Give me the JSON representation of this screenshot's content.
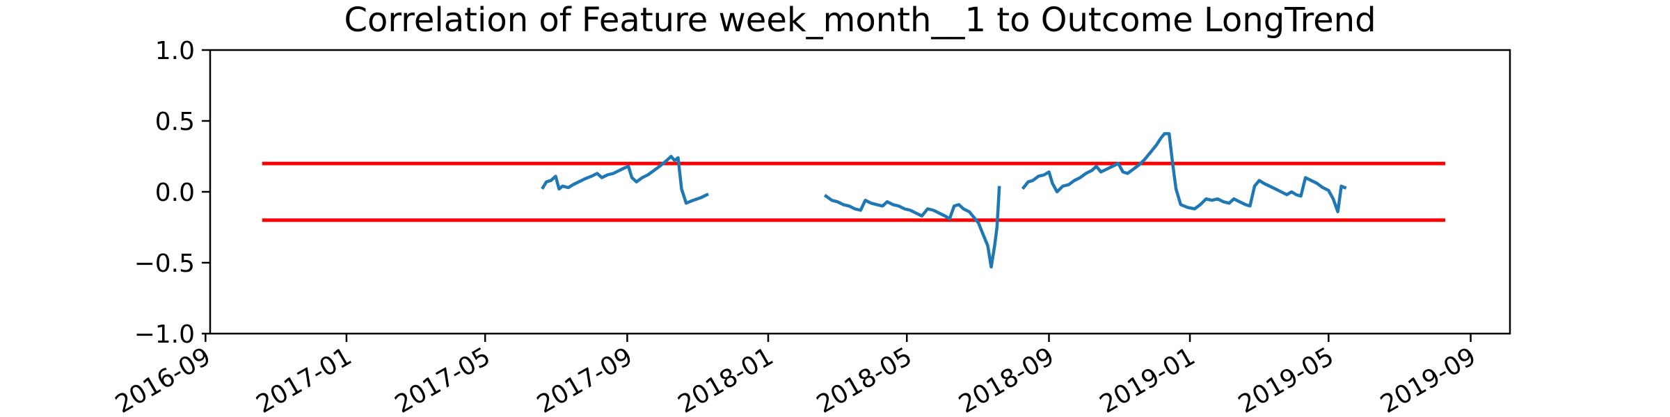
{
  "chart_data": {
    "type": "line",
    "title": "Correlation of Feature week_month__1 to Outcome LongTrend",
    "xlabel": "",
    "ylabel": "",
    "ylim": [
      -1.0,
      1.0
    ],
    "xlim": [
      "2016-09-05",
      "2019-10-05"
    ],
    "grid": false,
    "yticks": [
      {
        "v": 1.0,
        "label": "1.0"
      },
      {
        "v": 0.5,
        "label": "0.5"
      },
      {
        "v": 0.0,
        "label": "0.0"
      },
      {
        "v": -0.5,
        "label": "−0.5"
      },
      {
        "v": -1.0,
        "label": "−1.0"
      }
    ],
    "xticks": [
      {
        "date": "2016-09-01",
        "label": "2016-09"
      },
      {
        "date": "2017-01-01",
        "label": "2017-01"
      },
      {
        "date": "2017-05-01",
        "label": "2017-05"
      },
      {
        "date": "2017-09-01",
        "label": "2017-09"
      },
      {
        "date": "2018-01-01",
        "label": "2018-01"
      },
      {
        "date": "2018-05-01",
        "label": "2018-05"
      },
      {
        "date": "2018-09-01",
        "label": "2018-09"
      },
      {
        "date": "2019-01-01",
        "label": "2019-01"
      },
      {
        "date": "2019-05-01",
        "label": "2019-05"
      },
      {
        "date": "2019-09-01",
        "label": "2019-09"
      }
    ],
    "thresholds": [
      {
        "y": 0.2,
        "x_start": "2016-10-20",
        "x_end": "2019-08-10",
        "color": "#ff0000"
      },
      {
        "y": -0.2,
        "x_start": "2016-10-20",
        "x_end": "2019-08-10",
        "color": "#ff0000"
      }
    ],
    "series_color": "#1f77b4",
    "segments": [
      [
        [
          "2017-06-20",
          0.03
        ],
        [
          "2017-06-23",
          0.07
        ],
        [
          "2017-06-27",
          0.08
        ],
        [
          "2017-07-01",
          0.11
        ],
        [
          "2017-07-04",
          0.02
        ],
        [
          "2017-07-07",
          0.04
        ],
        [
          "2017-07-12",
          0.03
        ],
        [
          "2017-07-16",
          0.05
        ],
        [
          "2017-07-21",
          0.07
        ],
        [
          "2017-07-26",
          0.09
        ],
        [
          "2017-08-01",
          0.11
        ],
        [
          "2017-08-06",
          0.13
        ],
        [
          "2017-08-10",
          0.1
        ],
        [
          "2017-08-15",
          0.12
        ],
        [
          "2017-08-20",
          0.13
        ],
        [
          "2017-08-25",
          0.15
        ],
        [
          "2017-08-30",
          0.17
        ],
        [
          "2017-09-02",
          0.18
        ],
        [
          "2017-09-05",
          0.1
        ],
        [
          "2017-09-09",
          0.07
        ],
        [
          "2017-09-14",
          0.1
        ],
        [
          "2017-09-19",
          0.12
        ],
        [
          "2017-09-24",
          0.15
        ],
        [
          "2017-09-29",
          0.18
        ],
        [
          "2017-10-05",
          0.22
        ],
        [
          "2017-10-09",
          0.25
        ],
        [
          "2017-10-12",
          0.22
        ],
        [
          "2017-10-15",
          0.24
        ],
        [
          "2017-10-18",
          0.02
        ],
        [
          "2017-10-22",
          -0.08
        ],
        [
          "2017-10-28",
          -0.06
        ],
        [
          "2017-11-04",
          -0.04
        ],
        [
          "2017-11-09",
          -0.02
        ]
      ],
      [
        [
          "2018-02-20",
          -0.03
        ],
        [
          "2018-02-25",
          -0.06
        ],
        [
          "2018-03-02",
          -0.07
        ],
        [
          "2018-03-07",
          -0.09
        ],
        [
          "2018-03-12",
          -0.1
        ],
        [
          "2018-03-17",
          -0.12
        ],
        [
          "2018-03-22",
          -0.13
        ],
        [
          "2018-03-26",
          -0.06
        ],
        [
          "2018-03-31",
          -0.08
        ],
        [
          "2018-04-05",
          -0.09
        ],
        [
          "2018-04-10",
          -0.1
        ],
        [
          "2018-04-14",
          -0.07
        ],
        [
          "2018-04-19",
          -0.09
        ],
        [
          "2018-04-24",
          -0.1
        ],
        [
          "2018-04-29",
          -0.12
        ],
        [
          "2018-05-04",
          -0.13
        ],
        [
          "2018-05-09",
          -0.15
        ],
        [
          "2018-05-14",
          -0.17
        ],
        [
          "2018-05-19",
          -0.12
        ],
        [
          "2018-05-24",
          -0.13
        ],
        [
          "2018-05-29",
          -0.15
        ],
        [
          "2018-06-03",
          -0.17
        ],
        [
          "2018-06-07",
          -0.19
        ],
        [
          "2018-06-11",
          -0.1
        ],
        [
          "2018-06-15",
          -0.09
        ],
        [
          "2018-06-19",
          -0.12
        ],
        [
          "2018-06-24",
          -0.14
        ],
        [
          "2018-06-28",
          -0.18
        ],
        [
          "2018-07-02",
          -0.22
        ],
        [
          "2018-07-06",
          -0.3
        ],
        [
          "2018-07-10",
          -0.38
        ],
        [
          "2018-07-13",
          -0.53
        ],
        [
          "2018-07-16",
          -0.38
        ],
        [
          "2018-07-18",
          -0.25
        ],
        [
          "2018-07-20",
          0.03
        ]
      ],
      [
        [
          "2018-08-10",
          0.03
        ],
        [
          "2018-08-14",
          0.07
        ],
        [
          "2018-08-18",
          0.08
        ],
        [
          "2018-08-23",
          0.11
        ],
        [
          "2018-08-28",
          0.12
        ],
        [
          "2018-09-01",
          0.14
        ],
        [
          "2018-09-04",
          0.06
        ],
        [
          "2018-09-08",
          0.0
        ],
        [
          "2018-09-13",
          0.04
        ],
        [
          "2018-09-18",
          0.05
        ],
        [
          "2018-09-23",
          0.08
        ],
        [
          "2018-09-28",
          0.1
        ],
        [
          "2018-10-03",
          0.13
        ],
        [
          "2018-10-08",
          0.15
        ],
        [
          "2018-10-12",
          0.18
        ],
        [
          "2018-10-16",
          0.14
        ],
        [
          "2018-10-21",
          0.16
        ],
        [
          "2018-10-26",
          0.18
        ],
        [
          "2018-10-31",
          0.2
        ],
        [
          "2018-11-04",
          0.14
        ],
        [
          "2018-11-08",
          0.13
        ],
        [
          "2018-11-13",
          0.16
        ],
        [
          "2018-11-18",
          0.19
        ],
        [
          "2018-11-23",
          0.23
        ],
        [
          "2018-11-28",
          0.28
        ],
        [
          "2018-12-03",
          0.33
        ],
        [
          "2018-12-07",
          0.38
        ],
        [
          "2018-12-10",
          0.41
        ],
        [
          "2018-12-14",
          0.41
        ],
        [
          "2018-12-17",
          0.2
        ],
        [
          "2018-12-20",
          0.02
        ],
        [
          "2018-12-24",
          -0.09
        ],
        [
          "2018-12-30",
          -0.11
        ],
        [
          "2019-01-05",
          -0.12
        ],
        [
          "2019-01-10",
          -0.09
        ],
        [
          "2019-01-15",
          -0.05
        ],
        [
          "2019-01-20",
          -0.06
        ],
        [
          "2019-01-25",
          -0.05
        ],
        [
          "2019-01-30",
          -0.07
        ],
        [
          "2019-02-04",
          -0.08
        ],
        [
          "2019-02-08",
          -0.05
        ],
        [
          "2019-02-13",
          -0.07
        ],
        [
          "2019-02-18",
          -0.09
        ],
        [
          "2019-02-22",
          -0.1
        ],
        [
          "2019-02-26",
          0.04
        ],
        [
          "2019-03-02",
          0.08
        ],
        [
          "2019-03-06",
          0.06
        ],
        [
          "2019-03-11",
          0.04
        ],
        [
          "2019-03-16",
          0.02
        ],
        [
          "2019-03-21",
          0.0
        ],
        [
          "2019-03-26",
          -0.02
        ],
        [
          "2019-03-30",
          0.0
        ],
        [
          "2019-04-03",
          -0.02
        ],
        [
          "2019-04-07",
          -0.03
        ],
        [
          "2019-04-11",
          0.1
        ],
        [
          "2019-04-16",
          0.08
        ],
        [
          "2019-04-21",
          0.06
        ],
        [
          "2019-04-26",
          0.03
        ],
        [
          "2019-05-01",
          0.01
        ],
        [
          "2019-05-05",
          -0.05
        ],
        [
          "2019-05-09",
          -0.14
        ],
        [
          "2019-05-12",
          0.04
        ],
        [
          "2019-05-15",
          0.03
        ]
      ]
    ]
  }
}
